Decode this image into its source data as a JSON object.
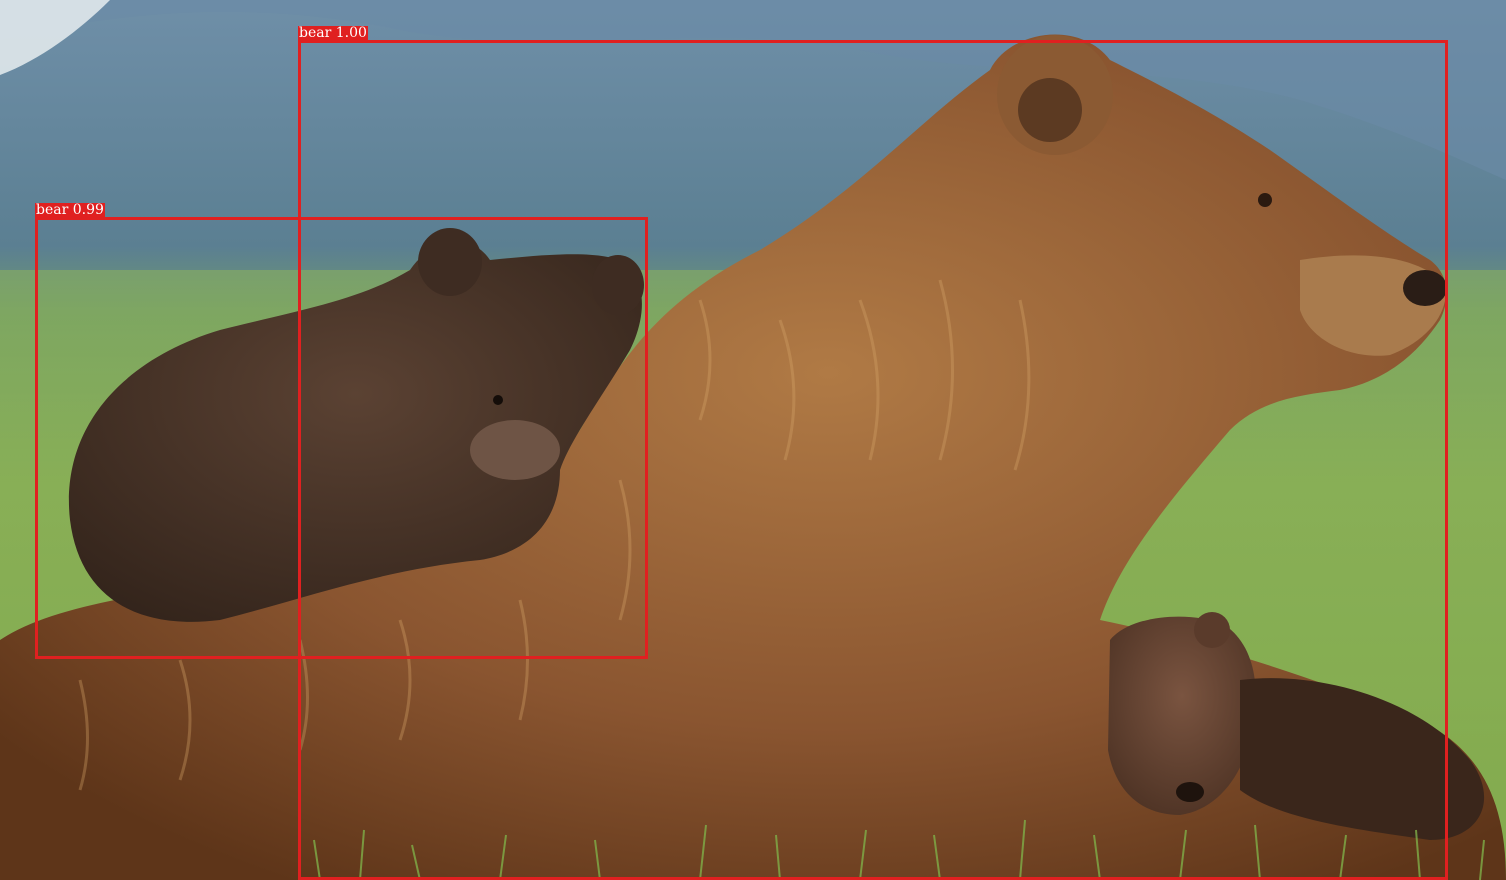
{
  "detections": [
    {
      "class": "bear",
      "score": "1.00"
    },
    {
      "class": "bear",
      "score": "0.99"
    }
  ],
  "colors": {
    "box": "#e02020",
    "label_text": "#ffffff"
  }
}
